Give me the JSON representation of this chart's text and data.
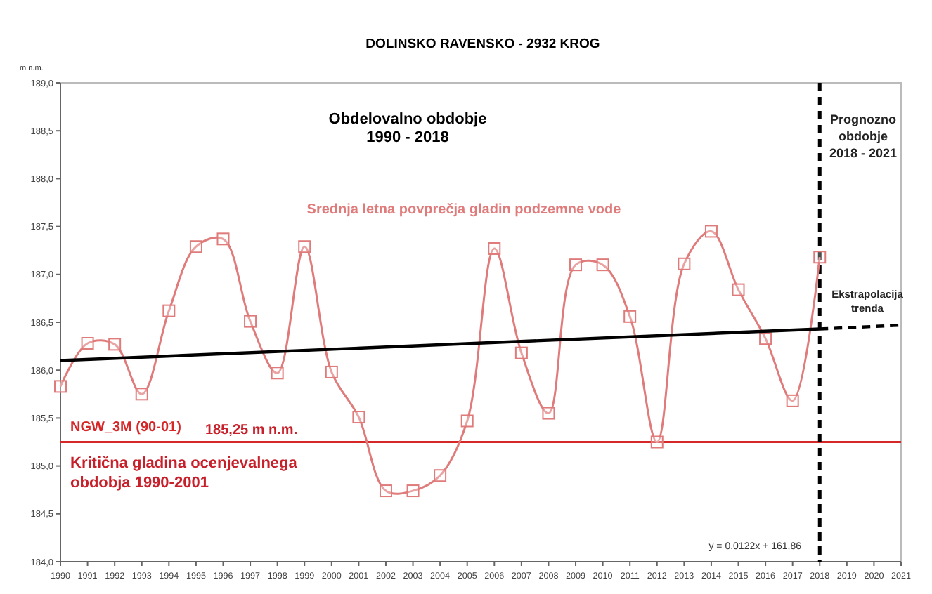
{
  "chart_data": {
    "type": "line",
    "title": "DOLINSKO RAVENSKO - 2932 KROG",
    "ylabel": "m n.m.",
    "x": [
      1990,
      1991,
      1992,
      1993,
      1994,
      1995,
      1996,
      1997,
      1998,
      1999,
      2000,
      2001,
      2002,
      2003,
      2004,
      2005,
      2006,
      2007,
      2008,
      2009,
      2010,
      2011,
      2012,
      2013,
      2014,
      2015,
      2016,
      2017,
      2018
    ],
    "series": [
      {
        "name": "Srednja letna povprečja gladin podzemne vode",
        "color": "#e07b7b",
        "marker": "square",
        "values": [
          185.83,
          186.28,
          186.27,
          185.75,
          186.62,
          187.29,
          187.37,
          186.51,
          185.97,
          187.29,
          185.98,
          185.51,
          184.74,
          184.74,
          184.9,
          185.47,
          187.27,
          186.18,
          185.55,
          187.1,
          187.1,
          186.56,
          185.25,
          187.11,
          187.45,
          186.84,
          186.33,
          185.68,
          187.18
        ]
      },
      {
        "color": "#000000",
        "marker": "none",
        "line_style": "solid",
        "x": [
          1990,
          2018
        ],
        "values": [
          186.1,
          186.43
        ]
      },
      {
        "name": "Ekstrapolacija trenda",
        "color": "#000000",
        "marker": "none",
        "line_style": "dashed",
        "x": [
          2018,
          2021
        ],
        "values": [
          186.43,
          186.47
        ]
      }
    ],
    "xlim": [
      1990,
      2021
    ],
    "xticks": [
      1990,
      1991,
      1992,
      1993,
      1994,
      1995,
      1996,
      1997,
      1998,
      1999,
      2000,
      2001,
      2002,
      2003,
      2004,
      2005,
      2006,
      2007,
      2008,
      2009,
      2010,
      2011,
      2012,
      2013,
      2014,
      2015,
      2016,
      2017,
      2018,
      2019,
      2020,
      2021
    ],
    "ylim": [
      184,
      189
    ],
    "yticks": [
      {
        "value": 184,
        "label": "184,0"
      },
      {
        "value": 184.5,
        "label": "184,5"
      },
      {
        "value": 185,
        "label": "185,0"
      },
      {
        "value": 185.5,
        "label": "185,5"
      },
      {
        "value": 186,
        "label": "186,0"
      },
      {
        "value": 186.5,
        "label": "186,5"
      },
      {
        "value": 187,
        "label": "187,0"
      },
      {
        "value": 187.5,
        "label": "187,5"
      },
      {
        "value": 188,
        "label": "188,0"
      },
      {
        "value": 188.5,
        "label": "188,5"
      },
      {
        "value": 189,
        "label": "189,0"
      }
    ],
    "ref_lines": [
      {
        "axis": "y",
        "value": 185.25,
        "label": "NGW_3M (90-01)",
        "color": "#d62728",
        "line_style": "solid"
      },
      {
        "axis": "x",
        "value": 2018,
        "color": "#000000",
        "line_style": "dashed"
      }
    ],
    "annotations": [
      "Obdelovalno obdobje\n1990 - 2018",
      "Prognozno\nobdobje\n2018 - 2021",
      "185,25 m n.m.",
      "Kritična gladina ocenjevalnega\nobdobja 1990-2001",
      "y = 0,0122x + 161,86"
    ],
    "grid": false
  }
}
